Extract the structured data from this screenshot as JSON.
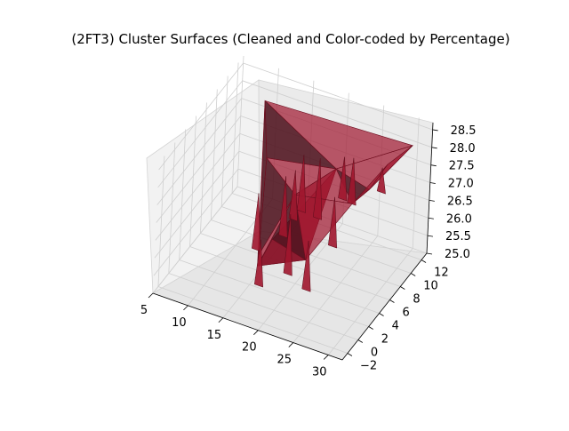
{
  "chart_data": {
    "type": "surface3d",
    "title": "(2FT3) Cluster Surfaces (Cleaned and Color-coded by Percentage)",
    "xlabel": "",
    "ylabel": "",
    "zlabel": "",
    "xlim": [
      5,
      32
    ],
    "ylim": [
      -3,
      13
    ],
    "zlim": [
      25.0,
      28.7
    ],
    "x_ticks": [
      "5",
      "10",
      "15",
      "20",
      "25",
      "30"
    ],
    "y_ticks": [
      "−2",
      "0",
      "2",
      "4",
      "6",
      "8",
      "10",
      "12"
    ],
    "z_ticks": [
      "25.0",
      "25.5",
      "26.0",
      "26.5",
      "27.0",
      "27.5",
      "28.0",
      "28.5"
    ],
    "grid": true,
    "surface_color": "#a0162e",
    "surface_dark_color": "#4a0c18",
    "pane_color": "#f2f2f2",
    "surface_vertices": [
      {
        "x": 9,
        "y": 12,
        "z": 27.9
      },
      {
        "x": 30,
        "y": 12,
        "z": 28.1
      },
      {
        "x": 28,
        "y": 10,
        "z": 27.8
      },
      {
        "x": 25,
        "y": 4,
        "z": 28.6
      },
      {
        "x": 20,
        "y": -1,
        "z": 27.2
      },
      {
        "x": 14,
        "y": 5,
        "z": 25.2
      },
      {
        "x": 11,
        "y": 10,
        "z": 26.8
      },
      {
        "x": 18,
        "y": 6,
        "z": 27.0
      },
      {
        "x": 22,
        "y": 3,
        "z": 26.0
      },
      {
        "x": 27,
        "y": 8,
        "z": 27.4
      },
      {
        "x": 16,
        "y": 2,
        "z": 25.6
      },
      {
        "x": 24,
        "y": 9,
        "z": 26.6
      }
    ]
  }
}
